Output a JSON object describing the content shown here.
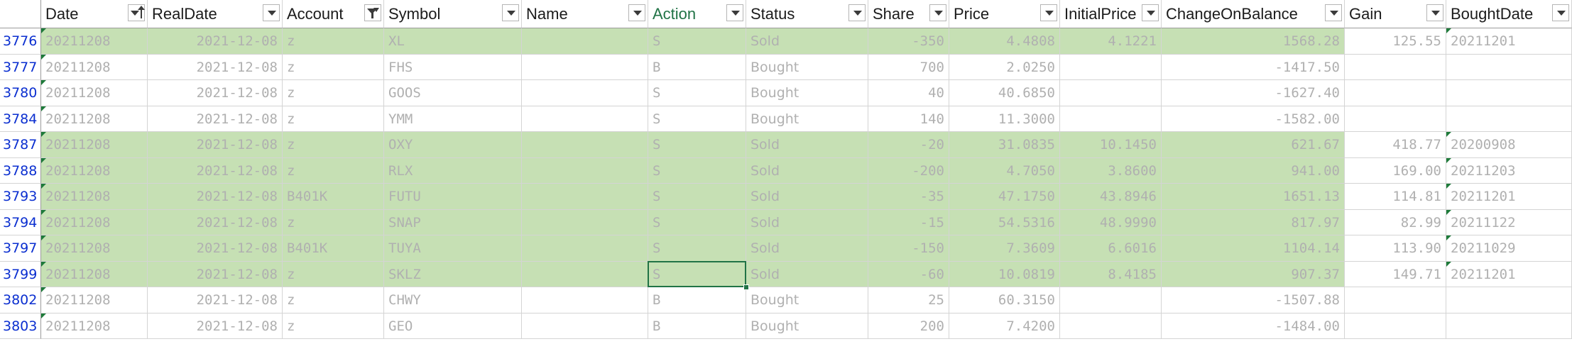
{
  "headers": [
    {
      "label": "Date",
      "control": "sort"
    },
    {
      "label": "RealDate",
      "control": "filter"
    },
    {
      "label": "Account",
      "control": "filtered"
    },
    {
      "label": "Symbol",
      "control": "filter"
    },
    {
      "label": "Name",
      "control": "filter"
    },
    {
      "label": "Action",
      "control": "filter",
      "active": true
    },
    {
      "label": "Status",
      "control": "filter"
    },
    {
      "label": "Share",
      "control": "filter"
    },
    {
      "label": "Price",
      "control": "filter"
    },
    {
      "label": "InitialPrice",
      "control": "filter"
    },
    {
      "label": "ChangeOnBalance",
      "control": "filter"
    },
    {
      "label": "Gain",
      "control": "filter"
    },
    {
      "label": "BoughtDate",
      "control": "filter"
    }
  ],
  "rows": [
    {
      "num": "3776",
      "green": true,
      "cells": [
        "20211208",
        "2021-12-08",
        "z",
        "XL",
        "",
        "S",
        "Sold",
        "-350",
        "4.4808",
        "4.1221",
        "1568.28",
        "125.55",
        "20211201"
      ]
    },
    {
      "num": "3777",
      "green": false,
      "cells": [
        "20211208",
        "2021-12-08",
        "z",
        "FHS",
        "",
        "B",
        "Bought",
        "700",
        "2.0250",
        "",
        "-1417.50",
        "",
        ""
      ]
    },
    {
      "num": "3780",
      "green": false,
      "cells": [
        "20211208",
        "2021-12-08",
        "z",
        "GOOS",
        "",
        "S",
        "Bought",
        "40",
        "40.6850",
        "",
        "-1627.40",
        "",
        ""
      ]
    },
    {
      "num": "3784",
      "green": false,
      "cells": [
        "20211208",
        "2021-12-08",
        "z",
        "YMM",
        "",
        "S",
        "Bought",
        "140",
        "11.3000",
        "",
        "-1582.00",
        "",
        ""
      ]
    },
    {
      "num": "3787",
      "green": true,
      "cells": [
        "20211208",
        "2021-12-08",
        "z",
        "OXY",
        "",
        "S",
        "Sold",
        "-20",
        "31.0835",
        "10.1450",
        "621.67",
        "418.77",
        "20200908"
      ]
    },
    {
      "num": "3788",
      "green": true,
      "cells": [
        "20211208",
        "2021-12-08",
        "z",
        "RLX",
        "",
        "S",
        "Sold",
        "-200",
        "4.7050",
        "3.8600",
        "941.00",
        "169.00",
        "20211203"
      ]
    },
    {
      "num": "3793",
      "green": true,
      "cells": [
        "20211208",
        "2021-12-08",
        "B401K",
        "FUTU",
        "",
        "S",
        "Sold",
        "-35",
        "47.1750",
        "43.8946",
        "1651.13",
        "114.81",
        "20211201"
      ]
    },
    {
      "num": "3794",
      "green": true,
      "cells": [
        "20211208",
        "2021-12-08",
        "z",
        "SNAP",
        "",
        "S",
        "Sold",
        "-15",
        "54.5316",
        "48.9990",
        "817.97",
        "82.99",
        "20211122"
      ]
    },
    {
      "num": "3797",
      "green": true,
      "cells": [
        "20211208",
        "2021-12-08",
        "B401K",
        "TUYA",
        "",
        "S",
        "Sold",
        "-150",
        "7.3609",
        "6.6016",
        "1104.14",
        "113.90",
        "20211029"
      ]
    },
    {
      "num": "3799",
      "green": true,
      "cells": [
        "20211208",
        "2021-12-08",
        "z",
        "SKLZ",
        "",
        "S",
        "Sold",
        "-60",
        "10.0819",
        "8.4185",
        "907.37",
        "149.71",
        "20211201"
      ]
    },
    {
      "num": "3802",
      "green": false,
      "cells": [
        "20211208",
        "2021-12-08",
        "z",
        "CHWY",
        "",
        "B",
        "Bought",
        "25",
        "60.3150",
        "",
        "-1507.88",
        "",
        ""
      ]
    },
    {
      "num": "3803",
      "green": false,
      "cells": [
        "20211208",
        "2021-12-08",
        "z",
        "GEO",
        "",
        "B",
        "Bought",
        "200",
        "7.4200",
        "",
        "-1484.00",
        "",
        ""
      ]
    }
  ],
  "colors": {
    "row_highlight": "#c6e0b4",
    "row_number": "#0b2fd0",
    "active_header": "#217346",
    "selection": "#217346",
    "error_marker": "#1e7b3a"
  },
  "icons": {
    "filter": "dropdown-arrow-icon",
    "sort": "sort-ascending-icon",
    "filtered": "funnel-filter-icon"
  }
}
